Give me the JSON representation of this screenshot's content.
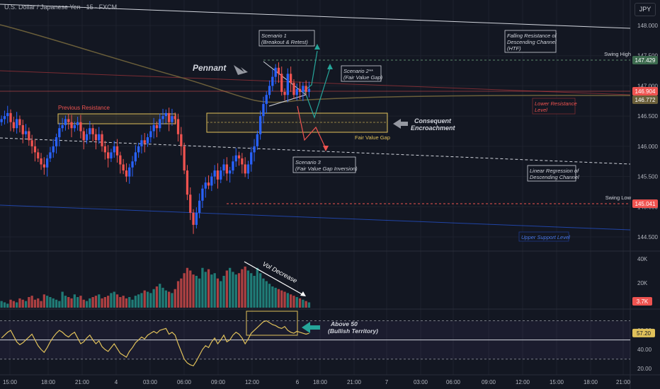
{
  "title": "U.S. Dollar / Japanese Yen · 15 · FXCM",
  "currency_button": "JPY",
  "colors": {
    "background": "#131722",
    "up": "#2962ff",
    "down": "#ef5350",
    "vol_up": "#26a69a",
    "vol_down": "#ef5350",
    "rsi_line": "#e0c15a",
    "fvg_box": "#e0c15a",
    "channel_white": "#d1d4dc",
    "support_blue": "#2962ff",
    "ma": "#6b5f3a"
  },
  "chart_data": [
    {
      "type": "candlestick",
      "price_axis": [
        {
          "y": 148.0,
          "label": "148.000"
        },
        {
          "y": 147.5,
          "label": "147.500"
        },
        {
          "y": 147.0,
          "label": "147.000"
        },
        {
          "y": 146.5,
          "label": "146.500"
        },
        {
          "y": 146.0,
          "label": "146.000"
        },
        {
          "y": 145.5,
          "label": "145.500"
        },
        {
          "y": 145.0,
          "label": "145.000"
        },
        {
          "y": 144.5,
          "label": "144.500"
        }
      ],
      "time_labels": [
        "15:00",
        "18:00",
        "21:00",
        "4",
        "03:00",
        "06:00",
        "09:00",
        "12:00",
        "6",
        "18:00",
        "21:00",
        "7",
        "03:00",
        "06:00",
        "09:00",
        "12:00",
        "15:00",
        "18:00",
        "21:00"
      ],
      "price_tags": [
        {
          "value": "147.429",
          "label": "Swing High",
          "color": "#3d6b4f"
        },
        {
          "value": "146.904",
          "label": "",
          "color": "#ef5350"
        },
        {
          "value": "146.772",
          "label": "",
          "color": "#6b5f3a"
        },
        {
          "value": "145.041",
          "label": "Swing Low",
          "color": "#ef5350"
        }
      ],
      "annotations": {
        "pennant": "Pennant",
        "scenario1": [
          "Scenario 1",
          "(Breakout & Retest)"
        ],
        "scenario2": [
          "Scenario 2**",
          "(Fair Value Gap)"
        ],
        "scenario3": [
          "Scenario 3",
          "(Fair Value Gap Inversion)"
        ],
        "falling_resistance": [
          "Falling Resistance of",
          "Descending Channel",
          "(HTF)"
        ],
        "lower_resistance": [
          "Lower Resistance",
          "Level"
        ],
        "consequent": [
          "Consequent",
          "Encroachment"
        ],
        "fvg_label": "Fair Value Gap",
        "linreg": [
          "Linear Regression of",
          "Descending Channel"
        ],
        "upper_support": "Upper Support Level",
        "previous_resistance": "Previous Resistance"
      },
      "closes": [
        146.45,
        146.5,
        146.55,
        146.4,
        146.3,
        146.45,
        146.35,
        146.2,
        146.25,
        146.1,
        146.0,
        145.9,
        145.8,
        145.7,
        145.65,
        145.8,
        145.9,
        146.0,
        146.15,
        146.3,
        146.35,
        146.45,
        146.4,
        146.3,
        146.35,
        146.4,
        146.25,
        146.1,
        146.2,
        146.3,
        146.2,
        146.1,
        146.2,
        146.0,
        145.9,
        145.8,
        145.9,
        146.0,
        145.85,
        145.7,
        145.6,
        145.5,
        145.65,
        145.75,
        145.9,
        146.0,
        146.1,
        146.05,
        146.15,
        146.25,
        146.35,
        146.3,
        146.45,
        146.5,
        146.55,
        146.4,
        146.5,
        146.45,
        146.2,
        146.0,
        145.6,
        145.2,
        144.9,
        144.7,
        144.9,
        145.1,
        145.3,
        145.4,
        145.35,
        145.5,
        145.6,
        145.45,
        145.6,
        145.7,
        145.55,
        145.6,
        145.75,
        145.85,
        145.8,
        145.7,
        145.55,
        145.7,
        145.9,
        146.0,
        146.2,
        146.5,
        146.7,
        146.85,
        147.0,
        147.15,
        147.3,
        147.2,
        146.9,
        146.85,
        147.2,
        147.05,
        146.85,
        146.95,
        146.9,
        147.0,
        146.9,
        146.95
      ]
    },
    {
      "type": "bar",
      "name": "Volume",
      "axis": [
        "40K",
        "20K"
      ],
      "last_value": "3.7K",
      "annotation": "Vol Decrease",
      "values": [
        5,
        4,
        3,
        6,
        5,
        4,
        7,
        6,
        5,
        8,
        9,
        6,
        7,
        5,
        10,
        9,
        8,
        7,
        6,
        5,
        12,
        9,
        8,
        7,
        10,
        8,
        9,
        6,
        5,
        7,
        8,
        9,
        10,
        7,
        8,
        9,
        11,
        12,
        10,
        8,
        9,
        7,
        8,
        6,
        9,
        10,
        11,
        13,
        12,
        11,
        14,
        16,
        18,
        15,
        13,
        12,
        11,
        14,
        20,
        22,
        26,
        30,
        28,
        25,
        24,
        22,
        30,
        27,
        29,
        25,
        26,
        22,
        20,
        24,
        28,
        30,
        27,
        25,
        26,
        29,
        31,
        28,
        26,
        24,
        30,
        26,
        22,
        20,
        18,
        16,
        15,
        14,
        13,
        12,
        11,
        10,
        9,
        8,
        7,
        6,
        5,
        4
      ]
    },
    {
      "type": "line",
      "name": "RSI",
      "axis": [
        "60.00",
        "40.00",
        "20.00"
      ],
      "last_value": "57.20",
      "annotation": [
        "Above 50",
        "(Bullish Territory)"
      ],
      "values": [
        52,
        55,
        58,
        60,
        54,
        48,
        45,
        47,
        50,
        53,
        56,
        50,
        44,
        40,
        37,
        42,
        48,
        53,
        57,
        60,
        58,
        55,
        53,
        56,
        58,
        52,
        46,
        48,
        52,
        55,
        50,
        46,
        49,
        43,
        40,
        38,
        42,
        46,
        41,
        36,
        34,
        32,
        38,
        42,
        47,
        50,
        53,
        51,
        55,
        57,
        59,
        57,
        60,
        61,
        62,
        56,
        58,
        55,
        46,
        38,
        30,
        26,
        24,
        23,
        28,
        34,
        40,
        44,
        42,
        48,
        52,
        46,
        50,
        55,
        48,
        50,
        55,
        58,
        56,
        52,
        46,
        51,
        57,
        60,
        63,
        66,
        69,
        70,
        68,
        66,
        65,
        63,
        62,
        64,
        60,
        58,
        57,
        59,
        58,
        57,
        56,
        57
      ]
    }
  ]
}
